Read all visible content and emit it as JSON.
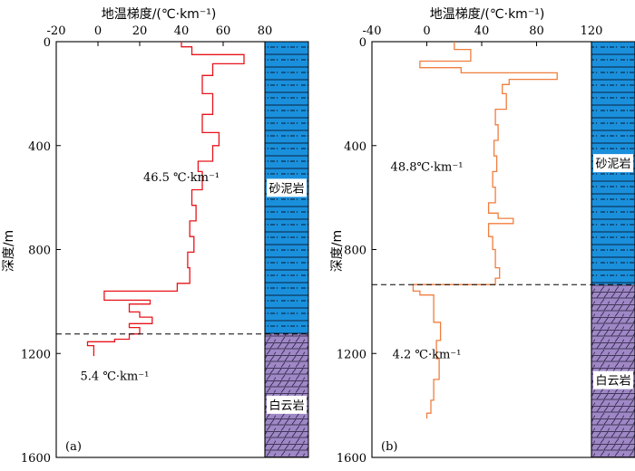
{
  "figure": {
    "yaxis_label": "深度/m",
    "xaxis_label": "地温梯度/(℃·km⁻¹)"
  },
  "chart_data": [
    {
      "type": "line",
      "panel_label": "(a)",
      "xlabel": "地温梯度/(℃·km⁻¹)",
      "ylabel": "深度/m",
      "xlim": [
        -20,
        80
      ],
      "ylim": [
        1600,
        0
      ],
      "x_ticks": [
        -20,
        0,
        20,
        40,
        60,
        80
      ],
      "y_ticks": [
        0,
        400,
        800,
        1200,
        1600
      ],
      "line_color": "#e8141b",
      "series_step": [
        [
          40,
          0
        ],
        [
          40,
          20
        ],
        [
          45,
          20
        ],
        [
          45,
          50
        ],
        [
          70,
          50
        ],
        [
          70,
          85
        ],
        [
          55,
          85
        ],
        [
          55,
          130
        ],
        [
          50,
          130
        ],
        [
          50,
          200
        ],
        [
          55,
          200
        ],
        [
          55,
          280
        ],
        [
          50,
          280
        ],
        [
          50,
          350
        ],
        [
          58,
          350
        ],
        [
          58,
          400
        ],
        [
          55,
          400
        ],
        [
          55,
          460
        ],
        [
          48,
          460
        ],
        [
          48,
          500
        ],
        [
          50,
          500
        ],
        [
          50,
          570
        ],
        [
          45,
          570
        ],
        [
          45,
          630
        ],
        [
          47,
          630
        ],
        [
          47,
          690
        ],
        [
          44,
          690
        ],
        [
          44,
          750
        ],
        [
          46,
          750
        ],
        [
          46,
          810
        ],
        [
          43,
          810
        ],
        [
          43,
          870
        ],
        [
          44,
          870
        ],
        [
          44,
          930
        ],
        [
          38,
          930
        ],
        [
          38,
          960
        ],
        [
          3,
          960
        ],
        [
          3,
          995
        ],
        [
          25,
          995
        ],
        [
          25,
          1010
        ],
        [
          15,
          1010
        ],
        [
          15,
          1040
        ],
        [
          20,
          1040
        ],
        [
          20,
          1060
        ],
        [
          26,
          1060
        ],
        [
          26,
          1085
        ],
        [
          15,
          1085
        ],
        [
          15,
          1100
        ],
        [
          20,
          1100
        ],
        [
          20,
          1125
        ],
        [
          15,
          1125
        ],
        [
          15,
          1145
        ],
        [
          8,
          1145
        ],
        [
          8,
          1155
        ],
        [
          -5,
          1155
        ],
        [
          -5,
          1170
        ],
        [
          -2,
          1170
        ],
        [
          -2,
          1210
        ]
      ],
      "boundary_depth": 1125,
      "annotations": [
        {
          "text": "46.5 ℃·km⁻¹",
          "x": 40,
          "y": 520
        },
        {
          "text": "5.4 ℃·km⁻¹",
          "x": 8,
          "y": 1285
        }
      ],
      "lithology": [
        {
          "name": "砂泥岩",
          "top": 0,
          "bottom": 1125,
          "color": "#1a90dc"
        },
        {
          "name": "白云岩",
          "top": 1125,
          "bottom": 1600,
          "color": "#9f88c6"
        }
      ]
    },
    {
      "type": "line",
      "panel_label": "(b)",
      "xlabel": "地温梯度/(℃·km⁻¹)",
      "ylabel": "深度/m",
      "xlim": [
        -40,
        120
      ],
      "ylim": [
        1600,
        0
      ],
      "x_ticks": [
        -40,
        0,
        40,
        80,
        120
      ],
      "y_ticks": [
        0,
        400,
        800,
        1200,
        1600
      ],
      "line_color": "#f07e3e",
      "series_step": [
        [
          20,
          0
        ],
        [
          20,
          30
        ],
        [
          32,
          30
        ],
        [
          32,
          75
        ],
        [
          -5,
          75
        ],
        [
          -5,
          100
        ],
        [
          25,
          100
        ],
        [
          25,
          120
        ],
        [
          95,
          120
        ],
        [
          95,
          145
        ],
        [
          60,
          145
        ],
        [
          60,
          165
        ],
        [
          55,
          165
        ],
        [
          55,
          200
        ],
        [
          58,
          200
        ],
        [
          58,
          260
        ],
        [
          50,
          260
        ],
        [
          50,
          320
        ],
        [
          52,
          320
        ],
        [
          52,
          380
        ],
        [
          49,
          380
        ],
        [
          49,
          440
        ],
        [
          51,
          440
        ],
        [
          51,
          500
        ],
        [
          48,
          500
        ],
        [
          48,
          560
        ],
        [
          50,
          560
        ],
        [
          50,
          620
        ],
        [
          45,
          620
        ],
        [
          45,
          660
        ],
        [
          52,
          660
        ],
        [
          52,
          680
        ],
        [
          63,
          680
        ],
        [
          63,
          700
        ],
        [
          45,
          700
        ],
        [
          45,
          750
        ],
        [
          48,
          750
        ],
        [
          48,
          800
        ],
        [
          50,
          800
        ],
        [
          50,
          870
        ],
        [
          53,
          870
        ],
        [
          53,
          910
        ],
        [
          50,
          910
        ],
        [
          50,
          935
        ],
        [
          -10,
          935
        ],
        [
          -10,
          960
        ],
        [
          -5,
          960
        ],
        [
          -5,
          975
        ],
        [
          5,
          975
        ],
        [
          5,
          1080
        ],
        [
          10,
          1080
        ],
        [
          10,
          1150
        ],
        [
          7,
          1150
        ],
        [
          7,
          1220
        ],
        [
          9,
          1220
        ],
        [
          9,
          1300
        ],
        [
          5,
          1300
        ],
        [
          5,
          1380
        ],
        [
          3,
          1380
        ],
        [
          3,
          1430
        ],
        [
          0,
          1430
        ],
        [
          0,
          1450
        ]
      ],
      "boundary_depth": 935,
      "annotations": [
        {
          "text": "48.8℃·km⁻¹",
          "x": 0,
          "y": 480
        },
        {
          "text": "4.2 ℃·km⁻¹",
          "x": 0,
          "y": 1200
        }
      ],
      "lithology": [
        {
          "name": "砂泥岩",
          "top": 0,
          "bottom": 935,
          "color": "#1a90dc"
        },
        {
          "name": "白云岩",
          "top": 935,
          "bottom": 1600,
          "color": "#9f88c6"
        }
      ]
    }
  ]
}
